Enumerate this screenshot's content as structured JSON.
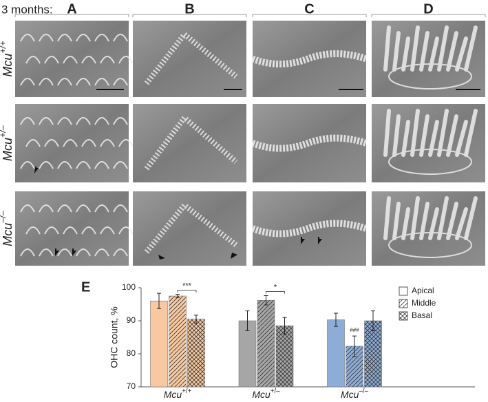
{
  "header": {
    "label": "3 months:"
  },
  "columns": [
    "A",
    "B",
    "C",
    "D"
  ],
  "rows": [
    {
      "base": "Mcu",
      "sup": "+/+"
    },
    {
      "base": "Mcu",
      "sup": "+/–"
    },
    {
      "base": "Mcu",
      "sup": "–/–"
    }
  ],
  "chart_data": {
    "type": "bar",
    "panel_label": "E",
    "y_label": "OHC count, %",
    "categories": [
      {
        "base": "Mcu",
        "sup": "+/+"
      },
      {
        "base": "Mcu",
        "sup": "+/–"
      },
      {
        "base": "Mcu",
        "sup": "–/–"
      }
    ],
    "category_colors": [
      "#f8c9a0",
      "#a6a6a6",
      "#8eadd6"
    ],
    "series": [
      {
        "name": "Apical",
        "pattern": "solid",
        "values": [
          96,
          90,
          90.3
        ],
        "errors": [
          2.3,
          3,
          2
        ]
      },
      {
        "name": "Middle",
        "pattern": "hatch",
        "values": [
          97.5,
          96.2,
          82.3
        ],
        "errors": [
          0.5,
          1.4,
          3.1
        ]
      },
      {
        "name": "Basal",
        "pattern": "crosshatch",
        "values": [
          90.5,
          88.5,
          90
        ],
        "errors": [
          1.2,
          2.5,
          3
        ]
      }
    ],
    "brackets": [
      {
        "text": "***",
        "category": 0,
        "series": [
          1,
          2
        ]
      },
      {
        "text": "*",
        "category": 1,
        "series": [
          1,
          2
        ]
      }
    ],
    "marks": [
      {
        "text": "###",
        "category": 2,
        "series": 1
      }
    ],
    "ylim": [
      70,
      100
    ],
    "yticks": [
      70,
      80,
      90,
      100
    ],
    "grid": false
  }
}
